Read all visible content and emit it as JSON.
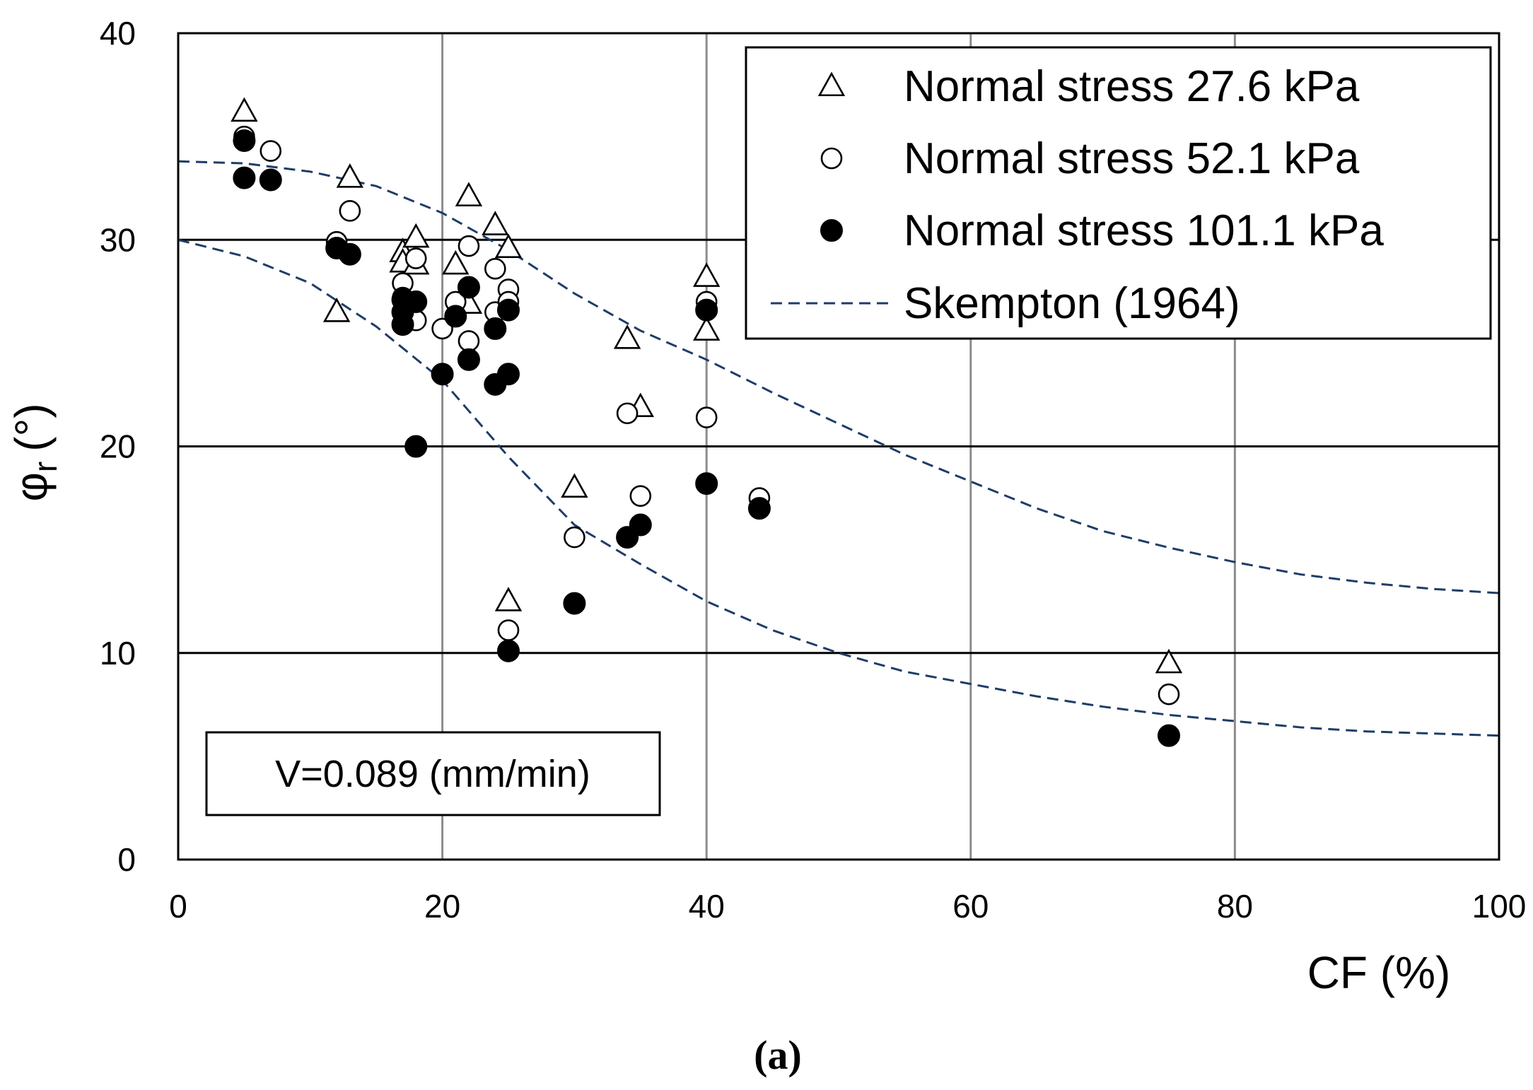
{
  "chart_data": {
    "type": "scatter",
    "caption": "(a)",
    "xlabel": "CF (%)",
    "ylabel_base": "φ",
    "ylabel_sub": "r",
    "ylabel_unit": "(°)",
    "xlim": [
      0,
      100
    ],
    "ylim": [
      0,
      40
    ],
    "xticks": [
      0,
      20,
      40,
      60,
      80,
      100
    ],
    "yticks": [
      0,
      10,
      20,
      30,
      40
    ],
    "grid": {
      "x": true,
      "y": true
    },
    "legend_position": "top-right",
    "note": "V=0.089 (mm/min)",
    "series": [
      {
        "name": "Normal stress 27.6 kPa",
        "marker": "triangle-open",
        "points": [
          [
            5,
            36.2
          ],
          [
            12,
            26.5
          ],
          [
            13,
            33.0
          ],
          [
            17,
            29.4
          ],
          [
            17,
            28.9
          ],
          [
            18,
            30.1
          ],
          [
            18,
            28.8
          ],
          [
            21,
            28.8
          ],
          [
            22,
            32.1
          ],
          [
            22,
            26.9
          ],
          [
            24,
            30.7
          ],
          [
            25,
            29.6
          ],
          [
            25,
            12.5
          ],
          [
            30,
            18.0
          ],
          [
            34,
            25.2
          ],
          [
            35,
            21.9
          ],
          [
            40,
            28.2
          ],
          [
            40,
            25.6
          ],
          [
            75,
            9.5
          ]
        ]
      },
      {
        "name": "Normal stress 52.1 kPa",
        "marker": "circle-open",
        "points": [
          [
            5,
            35.0
          ],
          [
            7,
            34.3
          ],
          [
            12,
            29.9
          ],
          [
            13,
            31.4
          ],
          [
            17,
            27.9
          ],
          [
            17,
            27.2
          ],
          [
            18,
            29.1
          ],
          [
            18,
            26.1
          ],
          [
            20,
            25.7
          ],
          [
            21,
            27.0
          ],
          [
            22,
            29.7
          ],
          [
            22,
            25.1
          ],
          [
            24,
            28.6
          ],
          [
            24,
            26.5
          ],
          [
            25,
            27.6
          ],
          [
            25,
            27.0
          ],
          [
            25,
            11.1
          ],
          [
            30,
            15.6
          ],
          [
            34,
            21.6
          ],
          [
            35,
            17.6
          ],
          [
            40,
            27.0
          ],
          [
            40,
            21.4
          ],
          [
            44,
            17.5
          ],
          [
            75,
            8.0
          ]
        ]
      },
      {
        "name": "Normal stress 101.1 kPa",
        "marker": "circle-filled",
        "points": [
          [
            5,
            34.8
          ],
          [
            5,
            33.0
          ],
          [
            7,
            32.9
          ],
          [
            12,
            29.6
          ],
          [
            13,
            29.3
          ],
          [
            17,
            27.1
          ],
          [
            17,
            26.5
          ],
          [
            17,
            25.9
          ],
          [
            18,
            27.0
          ],
          [
            18,
            20.0
          ],
          [
            20,
            23.5
          ],
          [
            21,
            26.3
          ],
          [
            22,
            27.7
          ],
          [
            22,
            24.2
          ],
          [
            24,
            25.7
          ],
          [
            24,
            23.0
          ],
          [
            25,
            26.6
          ],
          [
            25,
            23.5
          ],
          [
            25,
            10.1
          ],
          [
            30,
            12.4
          ],
          [
            34,
            15.6
          ],
          [
            35,
            16.2
          ],
          [
            40,
            26.6
          ],
          [
            40,
            18.2
          ],
          [
            44,
            17.0
          ],
          [
            75,
            6.0
          ]
        ]
      },
      {
        "name": "Skempton (1964)",
        "marker": "dashed-line",
        "curves": [
          [
            [
              0,
              33.8
            ],
            [
              5,
              33.7
            ],
            [
              10,
              33.3
            ],
            [
              15,
              32.6
            ],
            [
              20,
              31.3
            ],
            [
              25,
              29.5
            ],
            [
              30,
              27.4
            ],
            [
              35,
              25.6
            ],
            [
              40,
              24.2
            ],
            [
              45,
              22.6
            ],
            [
              50,
              21.1
            ],
            [
              55,
              19.6
            ],
            [
              60,
              18.3
            ],
            [
              65,
              17.0
            ],
            [
              70,
              15.9
            ],
            [
              75,
              15.1
            ],
            [
              80,
              14.4
            ],
            [
              85,
              13.8
            ],
            [
              90,
              13.4
            ],
            [
              95,
              13.1
            ],
            [
              100,
              12.9
            ]
          ],
          [
            [
              0,
              30.0
            ],
            [
              5,
              29.2
            ],
            [
              10,
              27.9
            ],
            [
              15,
              25.8
            ],
            [
              20,
              23.2
            ],
            [
              25,
              19.5
            ],
            [
              30,
              16.2
            ],
            [
              35,
              14.3
            ],
            [
              40,
              12.5
            ],
            [
              45,
              11.1
            ],
            [
              50,
              10.0
            ],
            [
              55,
              9.1
            ],
            [
              60,
              8.5
            ],
            [
              65,
              7.9
            ],
            [
              70,
              7.4
            ],
            [
              75,
              7.0
            ],
            [
              80,
              6.7
            ],
            [
              85,
              6.4
            ],
            [
              90,
              6.2
            ],
            [
              95,
              6.1
            ],
            [
              100,
              6.0
            ]
          ]
        ]
      }
    ]
  }
}
